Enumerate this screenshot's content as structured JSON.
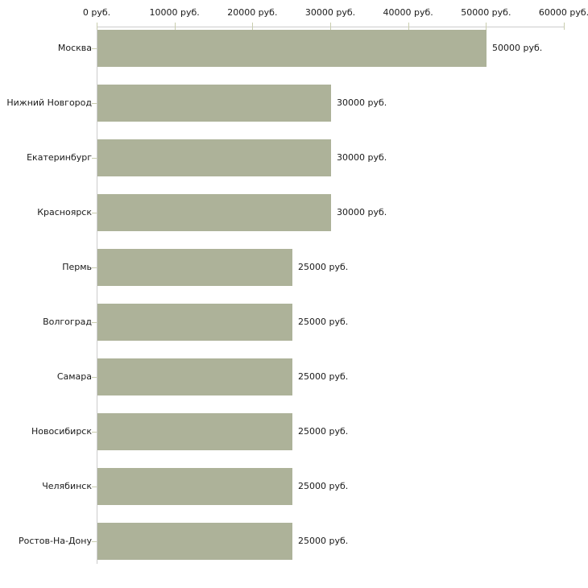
{
  "chart_data": {
    "type": "bar",
    "orientation": "horizontal",
    "title": "",
    "xlabel": "",
    "ylabel": "",
    "xlim": [
      0,
      60000
    ],
    "x_tick_step": 10000,
    "x_tick_labels": [
      "0 руб.",
      "10000 руб.",
      "20000 руб.",
      "30000 руб.",
      "40000 руб.",
      "50000 руб.",
      "60000 руб."
    ],
    "categories": [
      "Москва",
      "Нижний Новгород",
      "Екатеринбург",
      "Красноярск",
      "Пермь",
      "Волгоград",
      "Самара",
      "Новосибирск",
      "Челябинск",
      "Ростов-На-Дону"
    ],
    "values": [
      50000,
      30000,
      30000,
      30000,
      25000,
      25000,
      25000,
      25000,
      25000,
      25000
    ],
    "value_labels": [
      "50000 руб.",
      "30000 руб.",
      "30000 руб.",
      "30000 руб.",
      "25000 руб.",
      "25000 руб.",
      "25000 руб.",
      "25000 руб.",
      "25000 руб.",
      "25000 руб."
    ],
    "grid": false,
    "legend": false,
    "colors": {
      "bar_fill": "#adb299",
      "axis_line": "#cccccc",
      "tick_mark": "#c9cdae",
      "text": "#1a1a1a",
      "background": "#ffffff"
    }
  }
}
